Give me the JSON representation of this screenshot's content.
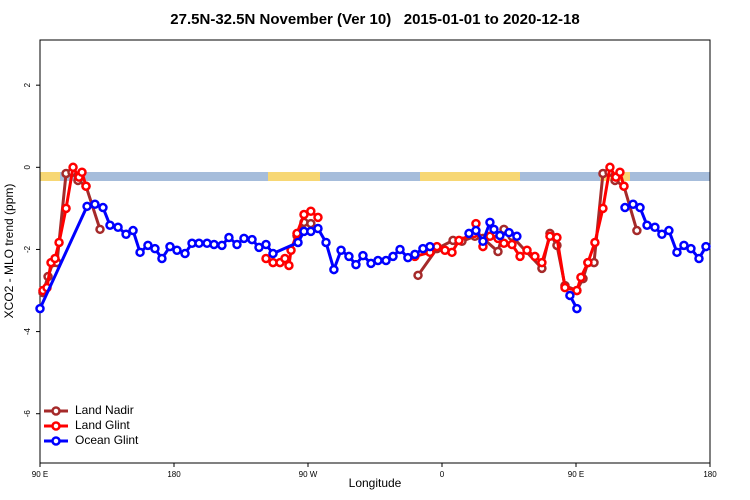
{
  "chart_data": {
    "type": "line",
    "title": "27.5N-32.5N November (Ver 10)   2015-01-01 to 2020-12-18",
    "xlabel": "Longitude",
    "ylabel": "XCO2 - MLO trend (ppm)",
    "xlim": [
      90,
      540
    ],
    "ylim": [
      -7.2,
      3.1
    ],
    "xticks": [
      {
        "value": 90,
        "label": "90 E"
      },
      180,
      {
        "value": 270,
        "label": "90 W"
      },
      {
        "value": 360,
        "label": "0"
      },
      {
        "value": 450,
        "label": "90 E"
      },
      {
        "value": 540,
        "label": "180"
      }
    ],
    "yticks": [
      -6,
      -4,
      -2,
      0,
      2
    ],
    "legend": "bottom-left",
    "series": [
      {
        "name": "Land Nadir",
        "color": "#a52a2a",
        "x": [
          92.0,
          95.4,
          98.7,
          101.4,
          107.5,
          111.5,
          115.5,
          120.9,
          130.3,
          null,
          262.6,
          267.3,
          271.9,
          null,
          343.9,
          356.6,
          367.4,
          373.4,
          382.1,
          387.5,
          397.6,
          401.6,
          407.0,
          427.1,
          432.5,
          437.2,
          442.6,
          450.6,
          454.7,
          458.0,
          462.1,
          468.1,
          472.2,
          476.2,
          482.2,
          490.9
        ],
        "values": [
          -3.05,
          -2.66,
          -2.32,
          -2.32,
          -0.15,
          -0.12,
          -0.32,
          -0.46,
          -1.51,
          null,
          -1.66,
          -1.34,
          -1.37,
          null,
          -2.63,
          -1.98,
          -1.78,
          -1.8,
          -1.68,
          -1.73,
          -2.05,
          -1.51,
          -1.68,
          -2.46,
          -1.61,
          -1.9,
          -2.88,
          -3.0,
          -2.71,
          -2.32,
          -2.32,
          -0.15,
          -0.12,
          -0.32,
          -0.46,
          -1.54
        ]
      },
      {
        "name": "Land Glint",
        "color": "#ff0000",
        "x": [
          92.0,
          94.7,
          97.4,
          100.1,
          102.8,
          107.5,
          112.2,
          116.2,
          118.2,
          120.9,
          null,
          241.8,
          246.5,
          251.2,
          254.5,
          257.2,
          258.6,
          262.6,
          267.3,
          271.9,
          276.7,
          null,
          341.8,
          351.9,
          356.6,
          362.0,
          366.7,
          371.4,
          381.5,
          382.8,
          387.5,
          392.2,
          397.6,
          401.6,
          407.0,
          412.4,
          417.1,
          422.4,
          427.1,
          432.5,
          437.2,
          442.6,
          450.6,
          453.3,
          458.0,
          462.7,
          468.1,
          472.8,
          476.8,
          479.5,
          482.2
        ],
        "values": [
          -3.0,
          -2.93,
          -2.32,
          -2.22,
          -1.83,
          -1.0,
          0,
          -0.24,
          -0.12,
          -0.46,
          null,
          -2.22,
          -2.32,
          -2.32,
          -2.22,
          -2.39,
          -2.02,
          -1.61,
          -1.15,
          -1.07,
          -1.22,
          null,
          -2.17,
          -2.07,
          -1.93,
          -2.02,
          -2.07,
          -1.78,
          -1.61,
          -1.37,
          -1.93,
          -1.68,
          -1.73,
          -1.85,
          -1.88,
          -2.17,
          -2.02,
          -2.17,
          -2.32,
          -1.68,
          -1.71,
          -2.93,
          -3.0,
          -2.68,
          -2.32,
          -1.83,
          -1.0,
          0,
          -0.24,
          -0.12,
          -0.46
        ]
      },
      {
        "name": "Ocean Glint",
        "color": "#0000ff",
        "x": [
          90,
          121.6,
          126.9,
          132.3,
          137.0,
          142.4,
          147.8,
          152.5,
          157.2,
          162.5,
          167.2,
          171.9,
          177.3,
          182.0,
          187.4,
          192.1,
          196.8,
          202.2,
          206.9,
          212.2,
          216.9,
          222.3,
          227.0,
          232.4,
          237.1,
          241.8,
          246.5,
          263.3,
          267.3,
          271.9,
          276.7,
          282.1,
          287.4,
          292.2,
          297.5,
          302.2,
          306.9,
          312.3,
          317.0,
          322.4,
          327.1,
          331.8,
          337.1,
          341.8,
          347.2,
          351.9,
          null,
          378.1,
          382.8,
          387.5,
          392.2,
          394.9,
          398.9,
          405.0,
          410.3,
          null,
          445.9,
          450.6,
          null,
          482.9,
          488.3,
          493.0,
          497.7,
          503.0,
          507.7,
          512.4,
          517.8,
          522.5,
          527.2,
          532.6,
          537.3
        ],
        "values": [
          -3.44,
          -0.95,
          -0.9,
          -0.98,
          -1.41,
          -1.46,
          -1.63,
          -1.54,
          -2.07,
          -1.9,
          -1.98,
          -2.22,
          -1.93,
          -2.02,
          -2.1,
          -1.85,
          -1.85,
          -1.85,
          -1.88,
          -1.9,
          -1.71,
          -1.88,
          -1.73,
          -1.76,
          -1.95,
          -1.88,
          -2.1,
          -1.83,
          -1.56,
          -1.56,
          -1.49,
          -1.83,
          -2.49,
          -2.02,
          -2.17,
          -2.37,
          -2.15,
          -2.34,
          -2.27,
          -2.27,
          -2.17,
          -2.0,
          -2.2,
          -2.12,
          -1.98,
          -1.93,
          null,
          -1.61,
          -1.54,
          -1.8,
          -1.34,
          -1.51,
          -1.66,
          -1.59,
          -1.68,
          null,
          -3.12,
          -3.44,
          null,
          -0.98,
          -0.9,
          -0.98,
          -1.41,
          -1.46,
          -1.63,
          -1.54,
          -2.07,
          -1.9,
          -1.98,
          -2.22,
          -1.93
        ]
      }
    ]
  }
}
